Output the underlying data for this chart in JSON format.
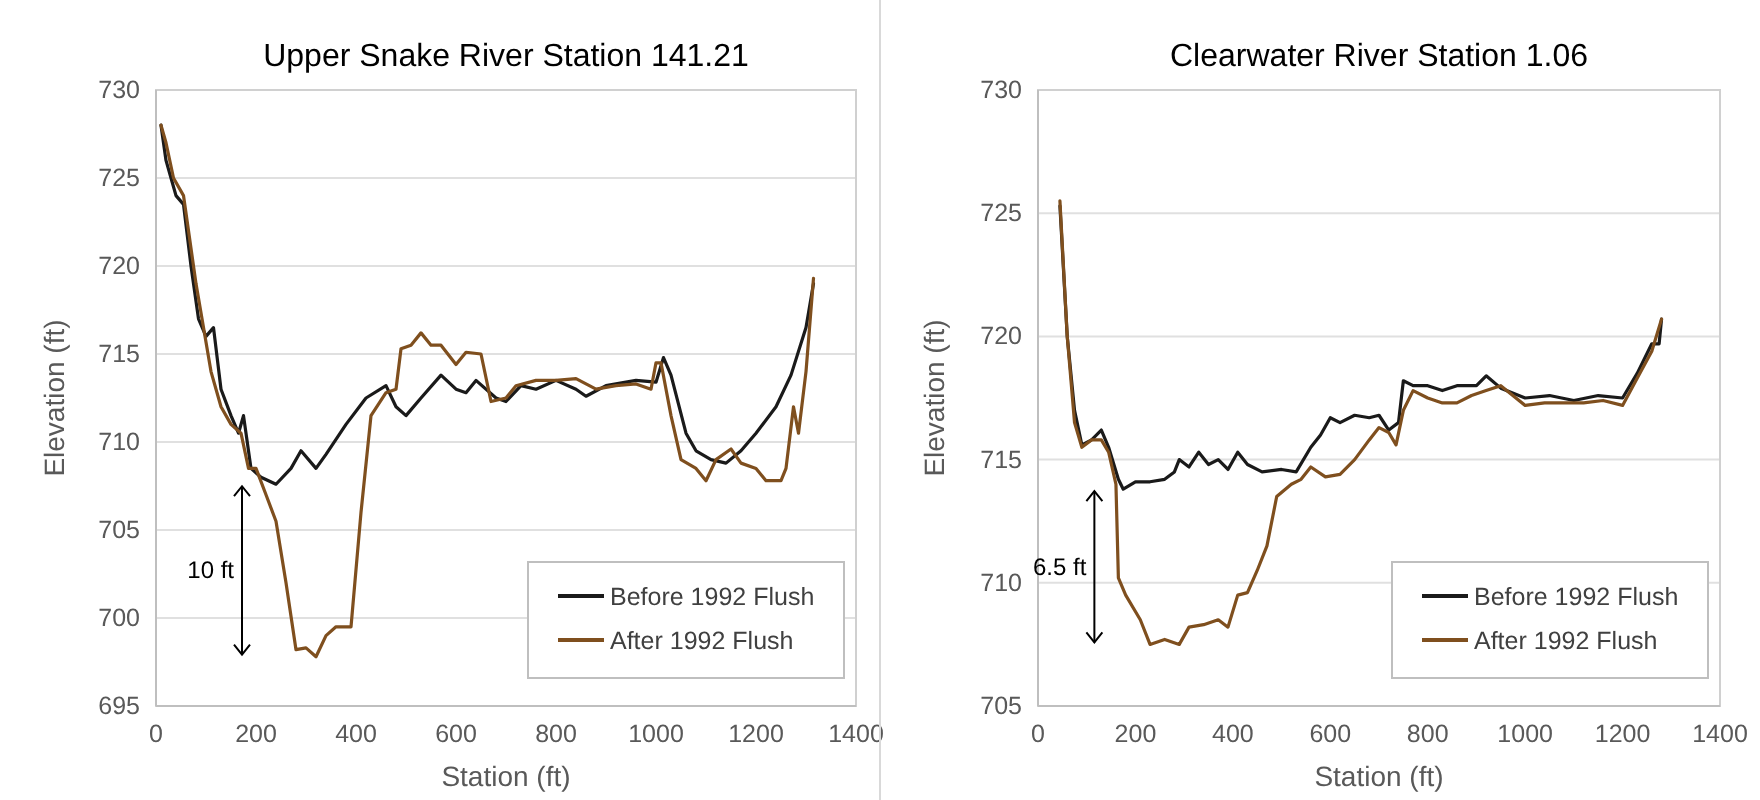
{
  "chart_data": [
    {
      "type": "line",
      "title": "Upper Snake River Station 141.21",
      "xlabel": "Station (ft)",
      "ylabel": "Elevation (ft)",
      "xlim": [
        0,
        1400
      ],
      "xticks": [
        0,
        200,
        400,
        600,
        800,
        1000,
        1200,
        1400
      ],
      "ylim": [
        695,
        730
      ],
      "yticks": [
        695,
        700,
        705,
        710,
        715,
        720,
        725,
        730
      ],
      "grid": "y",
      "legend": "bottom right",
      "marker": "none",
      "line_style": "solid",
      "annotations": [
        "10 ft"
      ],
      "series": [
        {
          "name": "Before 1992 Flush",
          "color": "#1a1a1a",
          "x": [
            10,
            20,
            30,
            40,
            55,
            70,
            85,
            100,
            115,
            130,
            150,
            165,
            175,
            190,
            210,
            240,
            270,
            290,
            320,
            340,
            380,
            420,
            460,
            480,
            500,
            530,
            570,
            600,
            620,
            640,
            680,
            700,
            730,
            760,
            800,
            840,
            860,
            900,
            960,
            1000,
            1015,
            1030,
            1060,
            1080,
            1110,
            1140,
            1170,
            1200,
            1240,
            1270,
            1300,
            1315
          ],
          "values": [
            728,
            726,
            725,
            724,
            723.5,
            720,
            717,
            716,
            716.5,
            713,
            711.5,
            710.5,
            711.5,
            708.5,
            708,
            707.6,
            708.5,
            709.5,
            708.5,
            709.3,
            711,
            712.5,
            713.2,
            712,
            711.5,
            712.5,
            713.8,
            713,
            712.8,
            713.5,
            712.5,
            712.3,
            713.2,
            713,
            713.5,
            713,
            712.6,
            713.2,
            713.5,
            713.4,
            714.8,
            713.8,
            710.5,
            709.5,
            709,
            708.8,
            709.5,
            710.5,
            712,
            713.8,
            716.5,
            719
          ]
        },
        {
          "name": "After 1992 Flush",
          "color": "#7f4f1e",
          "x": [
            10,
            20,
            35,
            55,
            65,
            80,
            95,
            110,
            130,
            150,
            170,
            185,
            200,
            220,
            240,
            260,
            280,
            300,
            320,
            340,
            360,
            390,
            410,
            430,
            460,
            480,
            490,
            510,
            530,
            550,
            570,
            600,
            620,
            650,
            670,
            700,
            720,
            760,
            800,
            840,
            880,
            920,
            960,
            990,
            1000,
            1010,
            1030,
            1050,
            1080,
            1100,
            1120,
            1150,
            1170,
            1200,
            1220,
            1250,
            1260,
            1275,
            1285,
            1300,
            1315
          ],
          "values": [
            728,
            727,
            725,
            724,
            722,
            719,
            716.5,
            714,
            712,
            711,
            710.5,
            708.5,
            708.5,
            707,
            705.5,
            702,
            698.2,
            698.3,
            697.8,
            699,
            699.5,
            699.5,
            706,
            711.5,
            712.8,
            713,
            715.3,
            715.5,
            716.2,
            715.5,
            715.5,
            714.4,
            715.1,
            715,
            712.3,
            712.5,
            713.2,
            713.5,
            713.5,
            713.6,
            713,
            713.2,
            713.3,
            713,
            714.5,
            714.5,
            711.5,
            709,
            708.5,
            707.8,
            709,
            709.6,
            708.8,
            708.5,
            707.8,
            707.8,
            708.5,
            712,
            710.5,
            714,
            719.3
          ]
        }
      ]
    },
    {
      "type": "line",
      "title": "Clearwater River Station 1.06",
      "xlabel": "Station (ft)",
      "ylabel": "Elevation (ft)",
      "xlim": [
        0,
        1400
      ],
      "xticks": [
        0,
        200,
        400,
        600,
        800,
        1000,
        1200,
        1400
      ],
      "ylim": [
        705,
        730
      ],
      "yticks": [
        705,
        710,
        715,
        720,
        725,
        730
      ],
      "grid": "y",
      "legend": "bottom right",
      "marker": "none",
      "line_style": "solid",
      "annotations": [
        "6.5 ft"
      ],
      "series": [
        {
          "name": "Before 1992 Flush",
          "color": "#1a1a1a",
          "x": [
            45,
            60,
            75,
            90,
            110,
            130,
            145,
            165,
            175,
            200,
            230,
            260,
            280,
            290,
            310,
            330,
            350,
            370,
            390,
            410,
            430,
            460,
            500,
            530,
            560,
            580,
            600,
            620,
            650,
            680,
            700,
            720,
            740,
            750,
            770,
            800,
            830,
            860,
            900,
            920,
            950,
            1000,
            1050,
            1100,
            1150,
            1200,
            1230,
            1260,
            1275,
            1280
          ],
          "values": [
            725.3,
            720,
            717,
            715.6,
            715.8,
            716.2,
            715.5,
            714.2,
            713.8,
            714.1,
            714.1,
            714.2,
            714.5,
            715,
            714.7,
            715.3,
            714.8,
            715,
            714.6,
            715.3,
            714.8,
            714.5,
            714.6,
            714.5,
            715.5,
            716,
            716.7,
            716.5,
            716.8,
            716.7,
            716.8,
            716.2,
            716.5,
            718.2,
            718,
            718,
            717.8,
            718,
            718,
            718.4,
            717.9,
            717.5,
            717.6,
            717.4,
            717.6,
            717.5,
            718.5,
            719.7,
            719.7,
            720.7
          ]
        },
        {
          "name": "After 1992 Flush",
          "color": "#7f4f1e",
          "x": [
            45,
            60,
            75,
            90,
            110,
            130,
            145,
            160,
            165,
            180,
            210,
            230,
            260,
            290,
            310,
            340,
            370,
            390,
            410,
            430,
            450,
            470,
            490,
            520,
            540,
            560,
            590,
            620,
            650,
            680,
            700,
            720,
            735,
            750,
            770,
            800,
            830,
            860,
            890,
            920,
            950,
            1000,
            1040,
            1080,
            1120,
            1160,
            1200,
            1230,
            1260,
            1280
          ],
          "values": [
            725.5,
            720,
            716.5,
            715.5,
            715.8,
            715.8,
            715.3,
            714,
            710.2,
            709.5,
            708.5,
            707.5,
            707.7,
            707.5,
            708.2,
            708.3,
            708.5,
            708.2,
            709.5,
            709.6,
            710.5,
            711.5,
            713.5,
            714,
            714.2,
            714.7,
            714.3,
            714.4,
            715,
            715.8,
            716.3,
            716.1,
            715.6,
            717,
            717.8,
            717.5,
            717.3,
            717.3,
            717.6,
            717.8,
            718,
            717.2,
            717.3,
            717.3,
            717.3,
            717.4,
            717.2,
            718.3,
            719.4,
            720.7
          ]
        }
      ]
    }
  ]
}
